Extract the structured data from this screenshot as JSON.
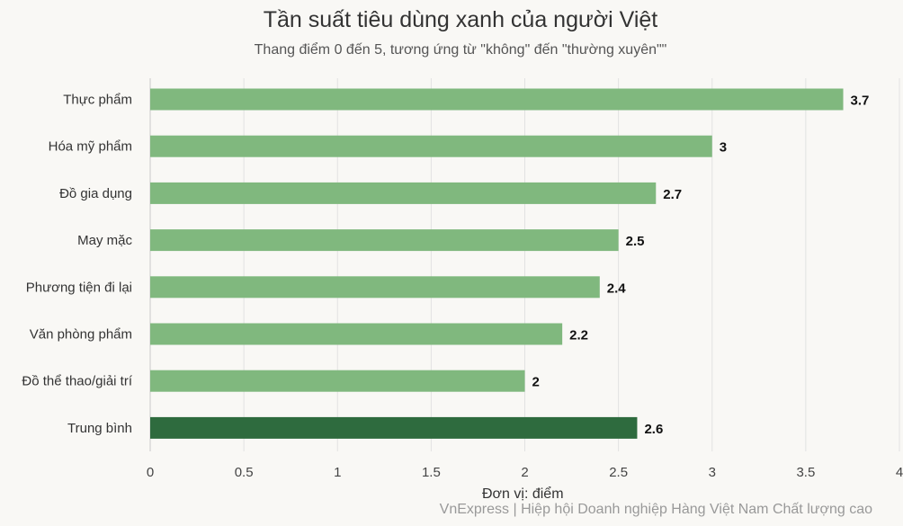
{
  "chart_data": {
    "type": "bar",
    "orientation": "horizontal",
    "title": "Tần suất tiêu dùng xanh của người Việt",
    "subtitle": "Thang điểm 0 đến 5, tương ứng từ \"không\" đến \"thường xuyên\"\"",
    "xlabel": "Đơn vị: điểm",
    "source": "VnExpress | Hiệp hội Doanh nghiệp Hàng Việt Nam Chất lượng cao",
    "categories": [
      "Thực phẩm",
      "Hóa mỹ phẩm",
      "Đồ gia dụng",
      "May mặc",
      "Phương tiện đi lại",
      "Văn phòng phẩm",
      "Đồ thể thao/giải trí",
      "Trung bình"
    ],
    "values": [
      3.7,
      3,
      2.7,
      2.5,
      2.4,
      2.2,
      2,
      2.6
    ],
    "value_labels": [
      "3.7",
      "3",
      "2.7",
      "2.5",
      "2.4",
      "2.2",
      "2",
      "2.6"
    ],
    "xlim": [
      0,
      4
    ],
    "xticks": [
      0,
      0.5,
      1,
      1.5,
      2,
      2.5,
      3,
      3.5,
      4
    ],
    "xtick_labels": [
      "0",
      "0.5",
      "1",
      "1.5",
      "2",
      "2.5",
      "3",
      "3.5",
      "4"
    ],
    "grid": "vertical",
    "legend": "none",
    "colors": {
      "bar": "#80b87e",
      "highlight_bar": "#2e6b3e",
      "highlight_category": "Trung bình",
      "grid": "#e2e2e2",
      "background": "#f9f8f5"
    }
  }
}
